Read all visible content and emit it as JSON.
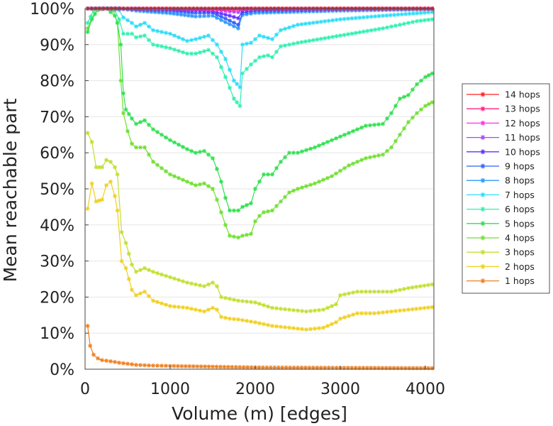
{
  "chart_data": {
    "type": "line",
    "xlabel": "Volume (m) [edges]",
    "ylabel": "Mean reachable part",
    "xlim": [
      0,
      4100
    ],
    "ylim": [
      0,
      100
    ],
    "x_ticks": [
      0,
      1000,
      2000,
      3000,
      4000
    ],
    "x_tick_labels": [
      "0",
      "1000",
      "2000",
      "3000",
      "4000"
    ],
    "y_ticks": [
      0,
      10,
      20,
      30,
      40,
      50,
      60,
      70,
      80,
      90,
      100
    ],
    "y_tick_labels": [
      "0%",
      "10%",
      "20%",
      "30%",
      "40%",
      "50%",
      "60%",
      "70%",
      "80%",
      "90%",
      "100%"
    ],
    "grid": "horizontal",
    "legend_position": "right",
    "series": [
      {
        "name": "14 hops",
        "color": "#ff2020",
        "points": [
          [
            30,
            100
          ],
          [
            500,
            100
          ],
          [
            1000,
            100
          ],
          [
            1500,
            100
          ],
          [
            2000,
            100
          ],
          [
            3000,
            100
          ],
          [
            4080,
            100
          ]
        ]
      },
      {
        "name": "13 hops",
        "color": "#ff2080",
        "points": [
          [
            30,
            100
          ],
          [
            500,
            100
          ],
          [
            1000,
            100
          ],
          [
            1500,
            100
          ],
          [
            2000,
            100
          ],
          [
            3000,
            100
          ],
          [
            4080,
            100
          ]
        ]
      },
      {
        "name": "12 hops",
        "color": "#ff30e0",
        "points": [
          [
            30,
            100
          ],
          [
            500,
            100
          ],
          [
            1000,
            100
          ],
          [
            1500,
            99.9
          ],
          [
            1800,
            99.8
          ],
          [
            2000,
            100
          ],
          [
            3000,
            100
          ],
          [
            4080,
            100
          ]
        ]
      },
      {
        "name": "11 hops",
        "color": "#b040ff",
        "points": [
          [
            30,
            100
          ],
          [
            500,
            100
          ],
          [
            1000,
            100
          ],
          [
            1500,
            99.7
          ],
          [
            1700,
            99.2
          ],
          [
            1800,
            99
          ],
          [
            1850,
            99.8
          ],
          [
            2000,
            100
          ],
          [
            3000,
            100
          ],
          [
            4080,
            100
          ]
        ]
      },
      {
        "name": "10 hops",
        "color": "#6030ff",
        "points": [
          [
            30,
            100
          ],
          [
            500,
            100
          ],
          [
            1000,
            99.9
          ],
          [
            1300,
            99.5
          ],
          [
            1500,
            99.2
          ],
          [
            1700,
            98
          ],
          [
            1800,
            97.3
          ],
          [
            1850,
            99.4
          ],
          [
            2000,
            99.8
          ],
          [
            3000,
            100
          ],
          [
            4080,
            100
          ]
        ]
      },
      {
        "name": "9 hops",
        "color": "#3060ff",
        "points": [
          [
            30,
            100
          ],
          [
            400,
            100
          ],
          [
            600,
            99.8
          ],
          [
            1000,
            99.4
          ],
          [
            1300,
            98.8
          ],
          [
            1500,
            98.8
          ],
          [
            1650,
            97.2
          ],
          [
            1800,
            95.5
          ],
          [
            1850,
            98.8
          ],
          [
            2000,
            99.4
          ],
          [
            3000,
            99.8
          ],
          [
            4080,
            100
          ]
        ]
      },
      {
        "name": "8 hops",
        "color": "#2c9af8",
        "points": [
          [
            30,
            100
          ],
          [
            400,
            100
          ],
          [
            600,
            99.4
          ],
          [
            1000,
            98.7
          ],
          [
            1300,
            97.8
          ],
          [
            1500,
            98
          ],
          [
            1650,
            96.2
          ],
          [
            1800,
            94.5
          ],
          [
            1850,
            98.2
          ],
          [
            2000,
            98.8
          ],
          [
            3000,
            99.4
          ],
          [
            4080,
            99.8
          ]
        ]
      },
      {
        "name": "7 hops",
        "color": "#2cdcf8",
        "points": [
          [
            30,
            100
          ],
          [
            150,
            100
          ],
          [
            350,
            100
          ],
          [
            400,
            99.5
          ],
          [
            450,
            97.5
          ],
          [
            550,
            96
          ],
          [
            600,
            95
          ],
          [
            700,
            96
          ],
          [
            800,
            94
          ],
          [
            1000,
            93
          ],
          [
            1200,
            91
          ],
          [
            1300,
            91.5
          ],
          [
            1450,
            92.5
          ],
          [
            1550,
            90
          ],
          [
            1650,
            86
          ],
          [
            1750,
            80
          ],
          [
            1820,
            78.2
          ],
          [
            1850,
            90
          ],
          [
            1950,
            90.5
          ],
          [
            2050,
            92.5
          ],
          [
            2200,
            91.5
          ],
          [
            2300,
            94
          ],
          [
            2500,
            95.5
          ],
          [
            3000,
            97
          ],
          [
            3500,
            98
          ],
          [
            4080,
            99
          ]
        ]
      },
      {
        "name": "6 hops",
        "color": "#30f0b0",
        "points": [
          [
            30,
            96
          ],
          [
            100,
            99.5
          ],
          [
            200,
            100
          ],
          [
            300,
            100
          ],
          [
            350,
            99.5
          ],
          [
            400,
            97
          ],
          [
            450,
            93
          ],
          [
            550,
            93
          ],
          [
            600,
            92
          ],
          [
            700,
            92.5
          ],
          [
            800,
            90
          ],
          [
            1000,
            89
          ],
          [
            1200,
            87.5
          ],
          [
            1300,
            87.5
          ],
          [
            1450,
            88.5
          ],
          [
            1550,
            86.5
          ],
          [
            1650,
            81
          ],
          [
            1750,
            75
          ],
          [
            1820,
            73
          ],
          [
            1850,
            82
          ],
          [
            1950,
            84.5
          ],
          [
            2050,
            86.5
          ],
          [
            2150,
            87
          ],
          [
            2200,
            86.5
          ],
          [
            2300,
            89.5
          ],
          [
            2500,
            90.5
          ],
          [
            3000,
            92.5
          ],
          [
            3500,
            94.5
          ],
          [
            3700,
            95.5
          ],
          [
            3900,
            96.5
          ],
          [
            4080,
            97
          ]
        ]
      },
      {
        "name": "5 hops",
        "color": "#30e050",
        "points": [
          [
            30,
            93.5
          ],
          [
            80,
            97
          ],
          [
            150,
            100
          ],
          [
            250,
            100
          ],
          [
            350,
            98
          ],
          [
            380,
            96
          ],
          [
            420,
            90
          ],
          [
            450,
            76.5
          ],
          [
            480,
            72
          ],
          [
            550,
            69.5
          ],
          [
            600,
            68
          ],
          [
            700,
            69
          ],
          [
            800,
            66.5
          ],
          [
            1000,
            63.5
          ],
          [
            1200,
            61
          ],
          [
            1300,
            60
          ],
          [
            1400,
            60.5
          ],
          [
            1500,
            58.5
          ],
          [
            1550,
            55.5
          ],
          [
            1600,
            52
          ],
          [
            1650,
            47.5
          ],
          [
            1700,
            44
          ],
          [
            1800,
            44
          ],
          [
            1850,
            45
          ],
          [
            1950,
            46
          ],
          [
            2000,
            50
          ],
          [
            2050,
            52
          ],
          [
            2100,
            54
          ],
          [
            2200,
            54
          ],
          [
            2300,
            57.5
          ],
          [
            2400,
            60
          ],
          [
            2500,
            60
          ],
          [
            2700,
            61.5
          ],
          [
            2900,
            63.5
          ],
          [
            3100,
            65.5
          ],
          [
            3300,
            67.5
          ],
          [
            3500,
            68
          ],
          [
            3600,
            71
          ],
          [
            3700,
            75
          ],
          [
            3800,
            76
          ],
          [
            3900,
            79
          ],
          [
            4000,
            81
          ],
          [
            4080,
            82
          ]
        ]
      },
      {
        "name": "4 hops",
        "color": "#70e030",
        "points": [
          [
            30,
            94.5
          ],
          [
            80,
            97.5
          ],
          [
            150,
            99.5
          ],
          [
            250,
            100
          ],
          [
            330,
            99.5
          ],
          [
            380,
            96
          ],
          [
            420,
            80
          ],
          [
            450,
            71
          ],
          [
            500,
            66
          ],
          [
            550,
            62.5
          ],
          [
            600,
            61.5
          ],
          [
            700,
            61.5
          ],
          [
            800,
            57.5
          ],
          [
            1000,
            54
          ],
          [
            1200,
            52
          ],
          [
            1300,
            51
          ],
          [
            1400,
            51.5
          ],
          [
            1500,
            50
          ],
          [
            1550,
            47
          ],
          [
            1600,
            43.5
          ],
          [
            1650,
            40
          ],
          [
            1700,
            37
          ],
          [
            1800,
            36.5
          ],
          [
            1850,
            37
          ],
          [
            1950,
            37.5
          ],
          [
            2000,
            41
          ],
          [
            2050,
            42.5
          ],
          [
            2100,
            43.5
          ],
          [
            2200,
            44
          ],
          [
            2300,
            46.5
          ],
          [
            2400,
            49
          ],
          [
            2500,
            50
          ],
          [
            2700,
            51.5
          ],
          [
            2900,
            53.5
          ],
          [
            3100,
            56.5
          ],
          [
            3300,
            58.5
          ],
          [
            3500,
            59.5
          ],
          [
            3600,
            61.5
          ],
          [
            3700,
            65
          ],
          [
            3800,
            68.5
          ],
          [
            3900,
            71
          ],
          [
            4000,
            73
          ],
          [
            4080,
            74
          ]
        ]
      },
      {
        "name": "3 hops",
        "color": "#c0e030",
        "points": [
          [
            30,
            65.5
          ],
          [
            80,
            63
          ],
          [
            130,
            56
          ],
          [
            200,
            56
          ],
          [
            250,
            58
          ],
          [
            300,
            57.5
          ],
          [
            350,
            56
          ],
          [
            380,
            54
          ],
          [
            430,
            38
          ],
          [
            480,
            35
          ],
          [
            550,
            29
          ],
          [
            600,
            27
          ],
          [
            700,
            28
          ],
          [
            800,
            27
          ],
          [
            1000,
            25.5
          ],
          [
            1200,
            24
          ],
          [
            1400,
            23
          ],
          [
            1500,
            24
          ],
          [
            1550,
            23
          ],
          [
            1600,
            20
          ],
          [
            1700,
            19.5
          ],
          [
            1800,
            19
          ],
          [
            2000,
            18.5
          ],
          [
            2200,
            17
          ],
          [
            2400,
            16.5
          ],
          [
            2600,
            16
          ],
          [
            2800,
            16.5
          ],
          [
            2950,
            18
          ],
          [
            3000,
            20.5
          ],
          [
            3200,
            21.5
          ],
          [
            3400,
            21.5
          ],
          [
            3600,
            21.5
          ],
          [
            3800,
            22.5
          ],
          [
            4080,
            23.5
          ]
        ]
      },
      {
        "name": "2 hops",
        "color": "#f0d020",
        "points": [
          [
            30,
            44.5
          ],
          [
            80,
            51.5
          ],
          [
            130,
            46.5
          ],
          [
            200,
            47
          ],
          [
            250,
            51
          ],
          [
            300,
            52
          ],
          [
            350,
            48
          ],
          [
            380,
            44
          ],
          [
            430,
            30
          ],
          [
            480,
            28
          ],
          [
            550,
            22
          ],
          [
            600,
            20.5
          ],
          [
            700,
            21.5
          ],
          [
            800,
            19
          ],
          [
            1000,
            17.5
          ],
          [
            1200,
            17
          ],
          [
            1400,
            16
          ],
          [
            1500,
            17
          ],
          [
            1550,
            16.5
          ],
          [
            1600,
            14.5
          ],
          [
            1700,
            14
          ],
          [
            1800,
            13.8
          ],
          [
            2000,
            13
          ],
          [
            2200,
            12
          ],
          [
            2400,
            11.5
          ],
          [
            2600,
            11
          ],
          [
            2800,
            11.5
          ],
          [
            2950,
            13
          ],
          [
            3000,
            14
          ],
          [
            3200,
            15.5
          ],
          [
            3400,
            15.5
          ],
          [
            3600,
            16
          ],
          [
            3800,
            16.5
          ],
          [
            4080,
            17.2
          ]
        ]
      },
      {
        "name": "1 hops",
        "color": "#f08020",
        "points": [
          [
            30,
            12
          ],
          [
            60,
            6.5
          ],
          [
            100,
            4
          ],
          [
            150,
            3
          ],
          [
            200,
            2.5
          ],
          [
            300,
            2.2
          ],
          [
            400,
            1.8
          ],
          [
            500,
            1.5
          ],
          [
            600,
            1.2
          ],
          [
            800,
            1
          ],
          [
            1000,
            0.9
          ],
          [
            1500,
            0.7
          ],
          [
            2000,
            0.5
          ],
          [
            3000,
            0.4
          ],
          [
            4080,
            0.3
          ]
        ]
      }
    ]
  }
}
